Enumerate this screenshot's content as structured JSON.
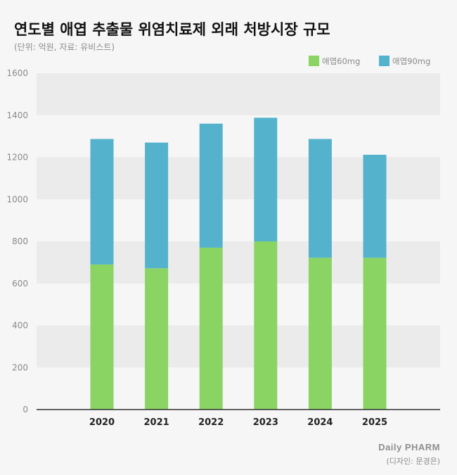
{
  "header": {
    "title": "연도별 애엽 추출물 위염치료제 외래 처방시장 규모",
    "subtitle": "(단위: 억원, 자료: 유비스트)"
  },
  "footer": {
    "brand": "Daily PHARM",
    "credit": "(디자인: 문경은)"
  },
  "colors": {
    "series_60mg": "#89d462",
    "series_90mg": "#55b2cd",
    "band": "#ebebeb",
    "background": "#f6f6f6",
    "axis": "#333333"
  },
  "chart_data": {
    "type": "bar",
    "stacked": true,
    "title": "연도별 애엽 추출물 위염치료제 외래 처방시장 규모",
    "subtitle": "(단위: 억원, 자료: 유비스트)",
    "xlabel": "",
    "ylabel": "",
    "categories": [
      "2020",
      "2021",
      "2022",
      "2023",
      "2024",
      "2025"
    ],
    "series": [
      {
        "name": "애엽60mg",
        "color": "#89d462",
        "values": [
          690,
          672,
          770,
          800,
          722,
          722
        ]
      },
      {
        "name": "애엽90mg",
        "color": "#55b2cd",
        "values": [
          597,
          598,
          590,
          588,
          565,
          490
        ]
      }
    ],
    "ylim": [
      0,
      1600
    ],
    "yticks": [
      "0",
      "200",
      "400",
      "600",
      "800",
      "1000",
      "1200",
      "1400",
      "1600"
    ],
    "legend": "top-right",
    "grid": "alternating horizontal bands"
  }
}
